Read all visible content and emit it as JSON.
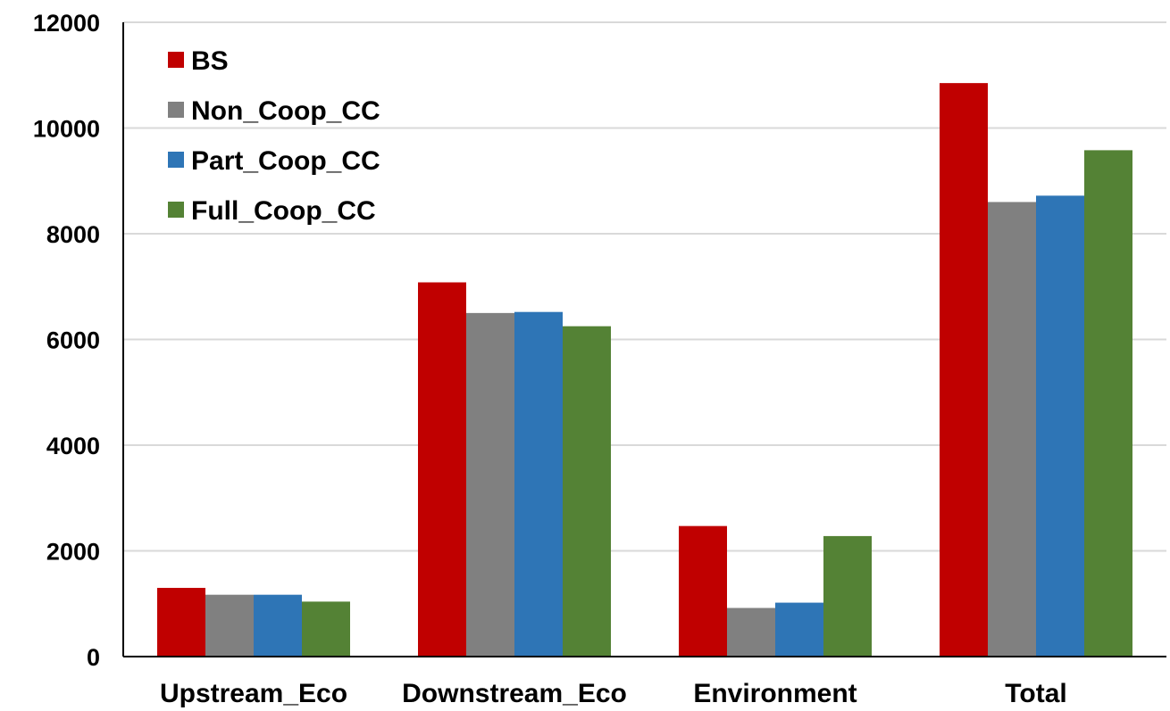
{
  "chart_data": {
    "type": "bar",
    "title": "",
    "xlabel": "",
    "ylabel": "",
    "categories": [
      "Upstream_Eco",
      "Downstream_Eco",
      "Environment",
      "Total"
    ],
    "series": [
      {
        "name": "BS",
        "color": "#c00000",
        "values": [
          1300,
          7080,
          2470,
          10850
        ]
      },
      {
        "name": "Non_Coop_CC",
        "color": "#808080",
        "values": [
          1170,
          6500,
          920,
          8600
        ]
      },
      {
        "name": "Part_Coop_CC",
        "color": "#2e75b6",
        "values": [
          1170,
          6520,
          1020,
          8720
        ]
      },
      {
        "name": "Full_Coop_CC",
        "color": "#548235",
        "values": [
          1040,
          6250,
          2280,
          9580
        ]
      }
    ],
    "ylim": [
      0,
      12000
    ],
    "yticks": [
      0,
      2000,
      4000,
      6000,
      8000,
      10000,
      12000
    ],
    "grid": true,
    "legend_position": "top-left"
  }
}
